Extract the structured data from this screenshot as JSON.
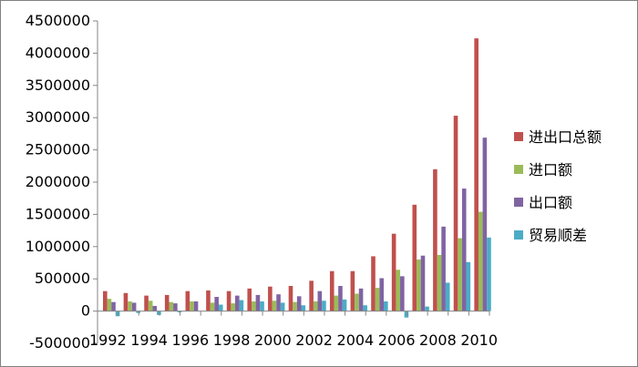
{
  "chart_data": {
    "type": "bar",
    "ylim": [
      -500000,
      4500000
    ],
    "yticks": [
      "4500000",
      "4000000",
      "3500000",
      "3000000",
      "2500000",
      "2000000",
      "1500000",
      "1000000",
      "500000",
      "0",
      "-500000"
    ],
    "categories": [
      "1992",
      "1993",
      "1994",
      "1995",
      "1996",
      "1997",
      "1998",
      "1999",
      "2000",
      "2001",
      "2002",
      "2003",
      "2004",
      "2005",
      "2006",
      "2007",
      "2008",
      "2009",
      "2010"
    ],
    "xtick_labels": [
      "1992",
      "1994",
      "1996",
      "1998",
      "2000",
      "2002",
      "2004",
      "2006",
      "2008",
      "2010"
    ],
    "grid": false,
    "legend_position": "right",
    "series": [
      {
        "name": "进出口总额",
        "color": "#C0504D",
        "values": [
          310000,
          280000,
          240000,
          250000,
          310000,
          320000,
          310000,
          350000,
          380000,
          390000,
          470000,
          620000,
          620000,
          850000,
          1200000,
          1650000,
          2200000,
          3030000,
          4230000
        ]
      },
      {
        "name": "进口额",
        "color": "#9BBB59",
        "values": [
          190000,
          150000,
          160000,
          140000,
          150000,
          130000,
          120000,
          150000,
          160000,
          140000,
          150000,
          240000,
          270000,
          360000,
          640000,
          800000,
          870000,
          1130000,
          1540000
        ]
      },
      {
        "name": "出口额",
        "color": "#8064A2",
        "values": [
          140000,
          130000,
          80000,
          120000,
          150000,
          220000,
          240000,
          250000,
          260000,
          230000,
          310000,
          390000,
          350000,
          510000,
          540000,
          860000,
          1310000,
          1900000,
          2690000
        ]
      },
      {
        "name": "贸易顺差",
        "color": "#4BACC6",
        "values": [
          -80000,
          -30000,
          -60000,
          -20000,
          0,
          100000,
          170000,
          150000,
          130000,
          90000,
          160000,
          180000,
          90000,
          150000,
          -100000,
          70000,
          440000,
          760000,
          1140000
        ]
      }
    ]
  }
}
